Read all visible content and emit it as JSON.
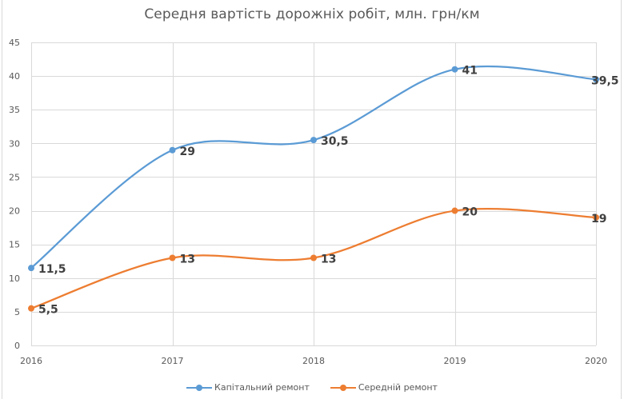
{
  "chart_data": {
    "type": "line",
    "title": "Середня вартість дорожніх робіт, млн. грн/км",
    "xlabel": "",
    "ylabel": "",
    "categories": [
      "2016",
      "2017",
      "2018",
      "2019",
      "2020"
    ],
    "series": [
      {
        "name": "Капітальний ремонт",
        "color": "#5b9bd5",
        "values": [
          11.5,
          29,
          30.5,
          41,
          39.5
        ],
        "labels": [
          "11,5",
          "29",
          "30,5",
          "41",
          "39,5"
        ]
      },
      {
        "name": "Середній ремонт",
        "color": "#ed7d31",
        "values": [
          5.5,
          13,
          13,
          20,
          19
        ],
        "labels": [
          "5,5",
          "13",
          "13",
          "20",
          "19"
        ]
      }
    ],
    "ylim": [
      0,
      45
    ],
    "yticks": [
      0,
      5,
      10,
      15,
      20,
      25,
      30,
      35,
      40,
      45
    ],
    "grid": true,
    "smooth": true,
    "legend_position": "bottom"
  },
  "legend": {
    "items": [
      {
        "label": "Капітальний ремонт",
        "color": "#5b9bd5"
      },
      {
        "label": "Середній ремонт",
        "color": "#ed7d31"
      }
    ]
  }
}
